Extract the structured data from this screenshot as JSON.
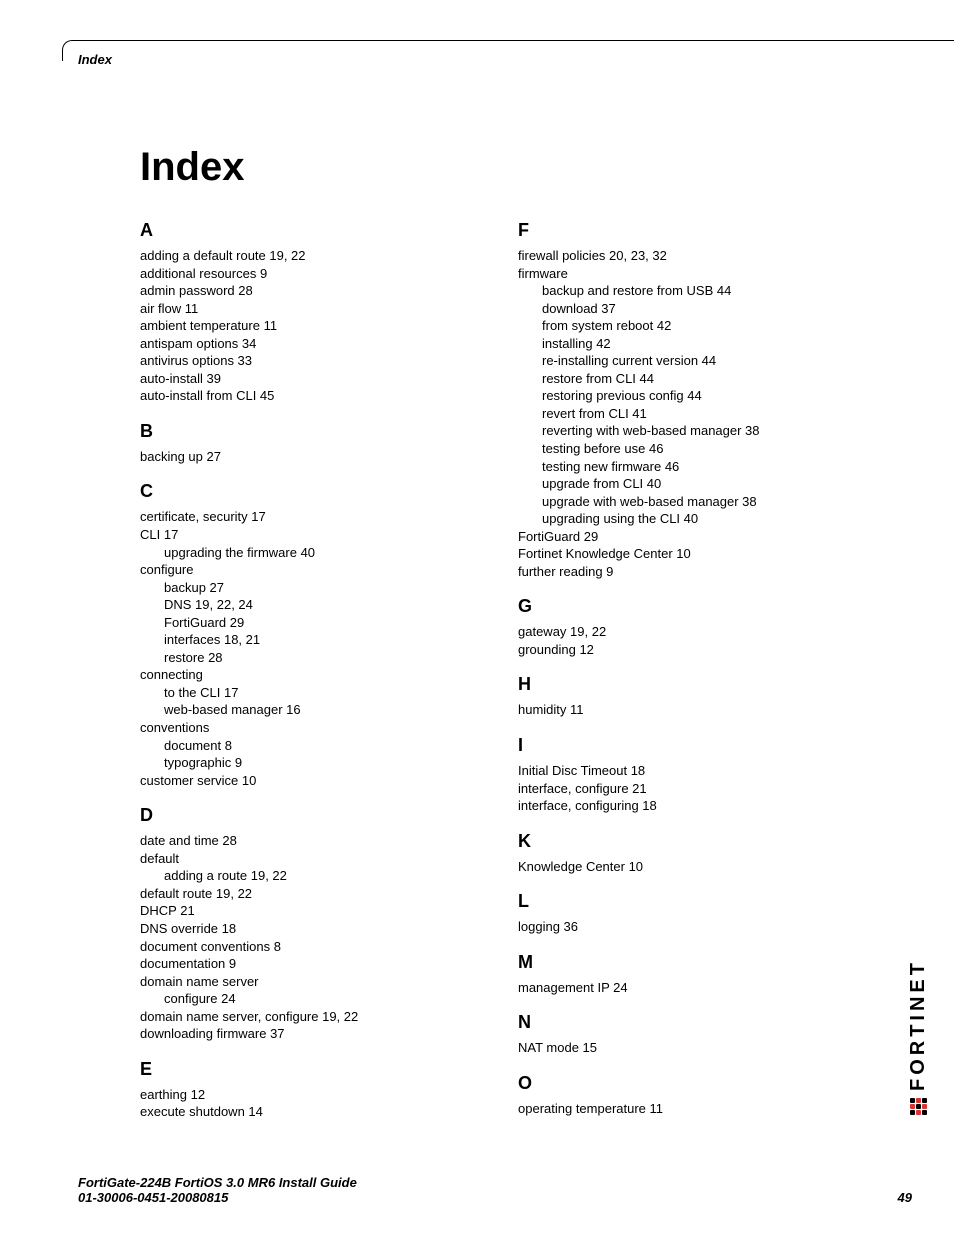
{
  "header": {
    "label": "Index"
  },
  "title": "Index",
  "footer": {
    "line1": "FortiGate-224B FortiOS 3.0 MR6 Install Guide",
    "line2": "01-30006-0451-20080815",
    "page": "49"
  },
  "logo": {
    "text": "FORTINET"
  },
  "sections": [
    {
      "letter": "A",
      "entries": [
        {
          "t": "adding a default route 19, 22",
          "l": 0
        },
        {
          "t": "additional resources 9",
          "l": 0
        },
        {
          "t": "admin password 28",
          "l": 0
        },
        {
          "t": "air flow 11",
          "l": 0
        },
        {
          "t": "ambient temperature 11",
          "l": 0
        },
        {
          "t": "antispam options 34",
          "l": 0
        },
        {
          "t": "antivirus options 33",
          "l": 0
        },
        {
          "t": "auto-install 39",
          "l": 0
        },
        {
          "t": "auto-install from CLI 45",
          "l": 0
        }
      ]
    },
    {
      "letter": "B",
      "entries": [
        {
          "t": "backing up 27",
          "l": 0
        }
      ]
    },
    {
      "letter": "C",
      "entries": [
        {
          "t": "certificate, security 17",
          "l": 0
        },
        {
          "t": "CLI 17",
          "l": 0
        },
        {
          "t": "upgrading the firmware 40",
          "l": 1
        },
        {
          "t": "configure",
          "l": 0
        },
        {
          "t": "backup 27",
          "l": 1
        },
        {
          "t": "DNS 19, 22, 24",
          "l": 1
        },
        {
          "t": "FortiGuard 29",
          "l": 1
        },
        {
          "t": "interfaces 18, 21",
          "l": 1
        },
        {
          "t": "restore 28",
          "l": 1
        },
        {
          "t": "connecting",
          "l": 0
        },
        {
          "t": "to the CLI 17",
          "l": 1
        },
        {
          "t": "web-based manager 16",
          "l": 1
        },
        {
          "t": "conventions",
          "l": 0
        },
        {
          "t": "document 8",
          "l": 1
        },
        {
          "t": "typographic 9",
          "l": 1
        },
        {
          "t": "customer service 10",
          "l": 0
        }
      ]
    },
    {
      "letter": "D",
      "entries": [
        {
          "t": "date and time 28",
          "l": 0
        },
        {
          "t": "default",
          "l": 0
        },
        {
          "t": "adding a route 19, 22",
          "l": 1
        },
        {
          "t": "default route 19, 22",
          "l": 0
        },
        {
          "t": "DHCP 21",
          "l": 0
        },
        {
          "t": "DNS override 18",
          "l": 0
        },
        {
          "t": "document conventions 8",
          "l": 0
        },
        {
          "t": "documentation 9",
          "l": 0
        },
        {
          "t": "domain name server",
          "l": 0
        },
        {
          "t": "configure 24",
          "l": 1
        },
        {
          "t": "domain name server, configure 19, 22",
          "l": 0
        },
        {
          "t": "downloading firmware 37",
          "l": 0
        }
      ]
    },
    {
      "letter": "E",
      "entries": [
        {
          "t": "earthing 12",
          "l": 0
        },
        {
          "t": "execute shutdown 14",
          "l": 0
        }
      ]
    },
    {
      "letter": "F",
      "entries": [
        {
          "t": "firewall policies 20, 23, 32",
          "l": 0
        },
        {
          "t": "firmware",
          "l": 0
        },
        {
          "t": "backup and restore from USB 44",
          "l": 1
        },
        {
          "t": "download 37",
          "l": 1
        },
        {
          "t": "from system reboot 42",
          "l": 1
        },
        {
          "t": "installing 42",
          "l": 1
        },
        {
          "t": "re-installing current version 44",
          "l": 1
        },
        {
          "t": "restore from CLI 44",
          "l": 1
        },
        {
          "t": "restoring previous config 44",
          "l": 1
        },
        {
          "t": "revert from CLI 41",
          "l": 1
        },
        {
          "t": "reverting with web-based manager 38",
          "l": 1
        },
        {
          "t": "testing before use 46",
          "l": 1
        },
        {
          "t": "testing new firmware 46",
          "l": 1
        },
        {
          "t": "upgrade from CLI 40",
          "l": 1
        },
        {
          "t": "upgrade with web-based manager 38",
          "l": 1
        },
        {
          "t": "upgrading using the CLI 40",
          "l": 1
        },
        {
          "t": "FortiGuard 29",
          "l": 0
        },
        {
          "t": "Fortinet Knowledge Center 10",
          "l": 0
        },
        {
          "t": "further reading 9",
          "l": 0
        }
      ]
    },
    {
      "letter": "G",
      "entries": [
        {
          "t": "gateway 19, 22",
          "l": 0
        },
        {
          "t": "grounding 12",
          "l": 0
        }
      ]
    },
    {
      "letter": "H",
      "entries": [
        {
          "t": "humidity 11",
          "l": 0
        }
      ]
    },
    {
      "letter": "I",
      "entries": [
        {
          "t": "Initial Disc Timeout 18",
          "l": 0
        },
        {
          "t": "interface, configure 21",
          "l": 0
        },
        {
          "t": "interface, configuring 18",
          "l": 0
        }
      ]
    },
    {
      "letter": "K",
      "entries": [
        {
          "t": "Knowledge Center 10",
          "l": 0
        }
      ]
    },
    {
      "letter": "L",
      "entries": [
        {
          "t": "logging 36",
          "l": 0
        }
      ]
    },
    {
      "letter": "M",
      "entries": [
        {
          "t": "management IP 24",
          "l": 0
        }
      ]
    },
    {
      "letter": "N",
      "entries": [
        {
          "t": "NAT mode 15",
          "l": 0
        }
      ]
    },
    {
      "letter": "O",
      "entries": [
        {
          "t": "operating temperature 11",
          "l": 0
        }
      ]
    }
  ]
}
